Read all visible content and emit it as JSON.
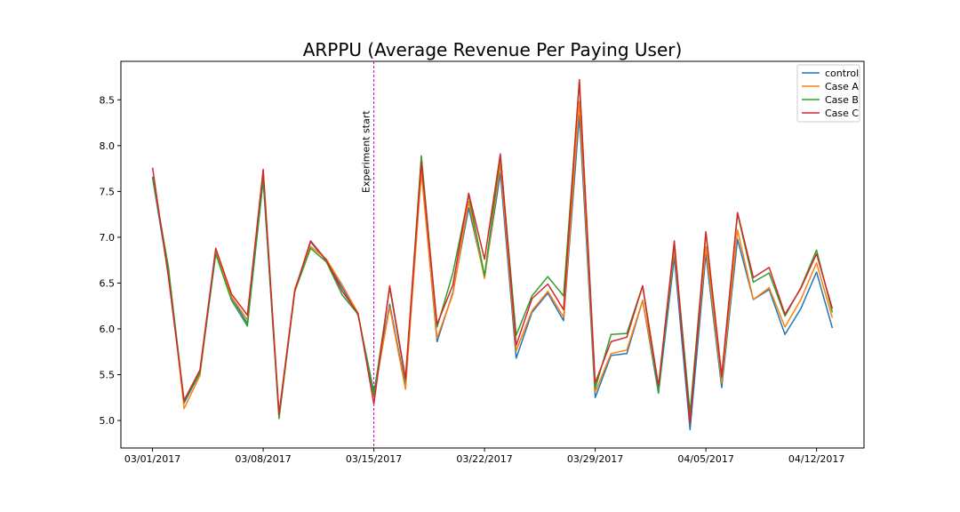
{
  "chart_data": {
    "type": "line",
    "title": "ARPPU (Average Revenue Per Paying User)",
    "xlabel": "",
    "ylabel": "",
    "x_start": "2017-03-01",
    "x_ticks": [
      "03/01/2017",
      "03/08/2017",
      "03/15/2017",
      "03/22/2017",
      "03/29/2017",
      "04/05/2017",
      "04/12/2017"
    ],
    "y_ticks": [
      "5.0",
      "5.5",
      "6.0",
      "6.5",
      "7.0",
      "7.5",
      "8.0",
      "8.5"
    ],
    "ylim": [
      4.7,
      8.92
    ],
    "grid": false,
    "legend_position": "top-right",
    "annotation": {
      "x": "2017-03-15",
      "label": "Experiment start",
      "color": "#bf00bf"
    },
    "series": [
      {
        "name": "control",
        "color": "#1f77b4",
        "values": [
          7.65,
          6.6,
          5.19,
          5.52,
          6.82,
          6.34,
          6.06,
          7.62,
          5.06,
          6.42,
          6.95,
          6.74,
          6.45,
          6.15,
          5.31,
          6.27,
          5.37,
          7.74,
          5.86,
          6.4,
          7.32,
          6.57,
          7.7,
          5.68,
          6.18,
          6.39,
          6.09,
          8.33,
          5.25,
          5.71,
          5.73,
          6.31,
          5.3,
          6.78,
          4.9,
          6.82,
          5.36,
          6.98,
          6.32,
          6.43,
          5.94,
          6.22,
          6.62,
          6.01
        ]
      },
      {
        "name": "Case A",
        "color": "#ff7f0e",
        "values": [
          7.66,
          6.68,
          5.13,
          5.49,
          6.85,
          6.35,
          6.1,
          7.66,
          5.08,
          6.44,
          6.9,
          6.76,
          6.48,
          6.17,
          5.27,
          6.24,
          5.34,
          7.71,
          5.9,
          6.38,
          7.39,
          6.55,
          7.8,
          5.76,
          6.2,
          6.41,
          6.13,
          8.48,
          5.31,
          5.73,
          5.77,
          6.31,
          5.35,
          6.87,
          5.06,
          6.9,
          5.41,
          7.08,
          6.32,
          6.45,
          6.02,
          6.32,
          6.72,
          6.12
        ]
      },
      {
        "name": "Case B",
        "color": "#2ca02c",
        "values": [
          7.66,
          6.67,
          5.21,
          5.52,
          6.82,
          6.31,
          6.03,
          7.64,
          5.02,
          6.41,
          6.88,
          6.73,
          6.37,
          6.16,
          5.28,
          6.45,
          5.44,
          7.89,
          6.02,
          6.61,
          7.46,
          6.58,
          7.89,
          5.93,
          6.36,
          6.57,
          6.36,
          8.7,
          5.35,
          5.94,
          5.95,
          6.47,
          5.31,
          6.93,
          5.08,
          7.05,
          5.47,
          7.26,
          6.51,
          6.61,
          6.14,
          6.45,
          6.86,
          6.18
        ]
      },
      {
        "name": "Case C",
        "color": "#d62728",
        "values": [
          7.76,
          6.57,
          5.22,
          5.55,
          6.88,
          6.38,
          6.15,
          7.74,
          5.07,
          6.42,
          6.96,
          6.75,
          6.41,
          6.17,
          5.18,
          6.47,
          5.46,
          7.82,
          6.05,
          6.48,
          7.48,
          6.76,
          7.91,
          5.82,
          6.33,
          6.49,
          6.21,
          8.72,
          5.41,
          5.86,
          5.91,
          6.47,
          5.38,
          6.96,
          4.97,
          7.06,
          5.49,
          7.27,
          6.56,
          6.67,
          6.16,
          6.44,
          6.82,
          6.22
        ]
      }
    ]
  }
}
